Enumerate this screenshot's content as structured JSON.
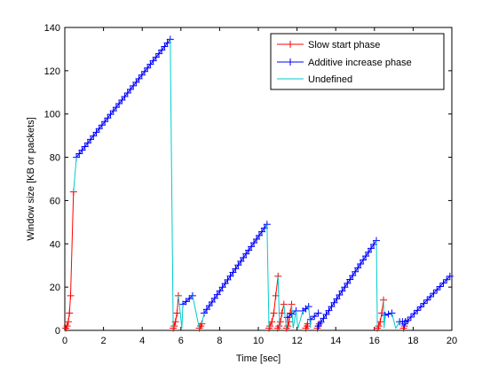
{
  "chart_data": {
    "type": "line",
    "title": "",
    "xlabel": "Time [sec]",
    "ylabel": "Window size [KB or packets]",
    "xlim": [
      0,
      20
    ],
    "ylim": [
      0,
      140
    ],
    "xticks": [
      0,
      2,
      4,
      6,
      8,
      10,
      12,
      14,
      16,
      18,
      20
    ],
    "yticks": [
      0,
      20,
      40,
      60,
      80,
      100,
      120,
      140
    ],
    "grid": false,
    "legend_position": "top-right",
    "series": [
      {
        "name": "Slow start phase",
        "color": "#ff0000",
        "marker": "+",
        "segments": [
          [
            [
              0.05,
              1
            ],
            [
              0.12,
              2
            ],
            [
              0.18,
              4
            ],
            [
              0.24,
              8
            ],
            [
              0.3,
              16
            ],
            [
              0.45,
              64
            ]
          ],
          [
            [
              5.6,
              1
            ],
            [
              5.65,
              2
            ],
            [
              5.72,
              4
            ],
            [
              5.8,
              8
            ],
            [
              5.87,
              16
            ]
          ],
          [
            [
              6.95,
              1
            ],
            [
              7.02,
              2
            ],
            [
              7.08,
              3
            ]
          ],
          [
            [
              10.55,
              1
            ],
            [
              10.6,
              2
            ],
            [
              10.7,
              4
            ],
            [
              10.8,
              8
            ],
            [
              10.9,
              16
            ],
            [
              11.02,
              25
            ]
          ],
          [
            [
              11.0,
              1
            ],
            [
              11.07,
              2
            ],
            [
              11.14,
              4
            ],
            [
              11.22,
              8
            ],
            [
              11.32,
              12
            ]
          ],
          [
            [
              11.45,
              1
            ],
            [
              11.52,
              2
            ],
            [
              11.58,
              4
            ],
            [
              11.65,
              8
            ],
            [
              11.72,
              12
            ]
          ],
          [
            [
              12.45,
              1
            ],
            [
              12.52,
              2
            ],
            [
              12.55,
              3
            ]
          ],
          [
            [
              13.05,
              1
            ],
            [
              13.1,
              2
            ],
            [
              13.15,
              3
            ]
          ],
          [
            [
              16.15,
              1
            ],
            [
              16.22,
              2
            ],
            [
              16.3,
              4
            ],
            [
              16.38,
              8
            ],
            [
              16.47,
              14
            ]
          ],
          [
            [
              17.5,
              1
            ],
            [
              17.55,
              2
            ],
            [
              17.6,
              4
            ]
          ]
        ]
      },
      {
        "name": "Additive increase phase",
        "color": "#0000ff",
        "marker": "+",
        "segments": [
          [
            [
              0.6,
              80
            ],
            [
              5.45,
              134.5
            ]
          ],
          [
            [
              6.1,
              12
            ],
            [
              6.6,
              16
            ]
          ],
          [
            [
              7.2,
              8
            ],
            [
              10.45,
              49
            ]
          ],
          [
            [
              11.5,
              6
            ],
            [
              11.95,
              9
            ]
          ],
          [
            [
              12.3,
              9
            ],
            [
              12.6,
              11
            ]
          ],
          [
            [
              12.7,
              5
            ],
            [
              13.1,
              8
            ]
          ],
          [
            [
              13.1,
              2
            ],
            [
              16.1,
              41.5
            ]
          ],
          [
            [
              16.55,
              7
            ],
            [
              16.9,
              8
            ]
          ],
          [
            [
              17.3,
              4
            ],
            [
              17.6,
              4
            ]
          ],
          [
            [
              17.55,
              3
            ],
            [
              19.9,
              25
            ]
          ]
        ]
      },
      {
        "name": "Undefined",
        "color": "#00cccc",
        "marker": "none",
        "segments": [
          [
            [
              0.45,
              64
            ],
            [
              0.6,
              80
            ]
          ],
          [
            [
              5.45,
              134.5
            ],
            [
              5.6,
              1
            ]
          ],
          [
            [
              5.87,
              16
            ],
            [
              6.05,
              1
            ],
            [
              6.1,
              12
            ]
          ],
          [
            [
              6.6,
              16
            ],
            [
              6.95,
              1
            ]
          ],
          [
            [
              7.08,
              3
            ],
            [
              7.2,
              8
            ]
          ],
          [
            [
              10.45,
              49
            ],
            [
              10.55,
              1
            ]
          ],
          [
            [
              11.02,
              25
            ],
            [
              11.1,
              1
            ]
          ],
          [
            [
              11.32,
              12
            ],
            [
              11.45,
              1
            ]
          ],
          [
            [
              11.72,
              12
            ],
            [
              11.8,
              1
            ],
            [
              11.95,
              9
            ],
            [
              12.05,
              1
            ],
            [
              12.3,
              9
            ]
          ],
          [
            [
              12.6,
              11
            ],
            [
              12.7,
              1
            ]
          ],
          [
            [
              16.1,
              41.5
            ],
            [
              16.15,
              1
            ]
          ],
          [
            [
              16.47,
              14
            ],
            [
              16.5,
              1
            ],
            [
              16.55,
              7
            ]
          ],
          [
            [
              16.9,
              8
            ],
            [
              17.1,
              1
            ],
            [
              17.3,
              4
            ]
          ],
          [
            [
              17.6,
              4
            ],
            [
              17.55,
              3
            ]
          ]
        ]
      }
    ]
  }
}
